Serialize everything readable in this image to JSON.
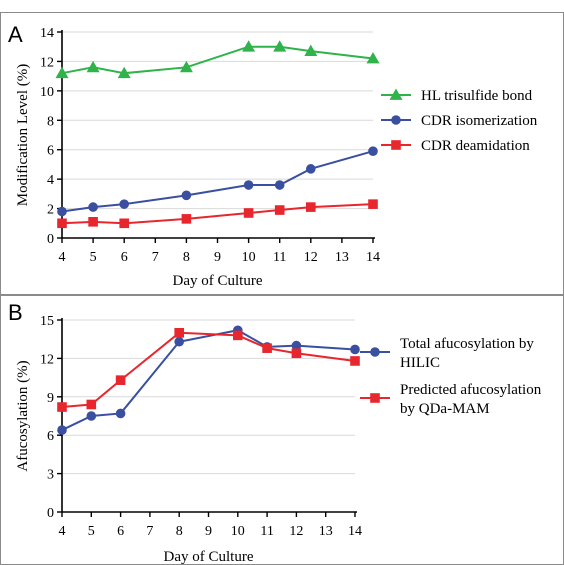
{
  "chart_data": [
    {
      "type": "line",
      "panel_label": "A",
      "title": "",
      "xlabel": "Day of Culture",
      "ylabel": "Modification Level (%)",
      "xlim": [
        4,
        14
      ],
      "ylim": [
        0,
        14
      ],
      "xticks": [
        4,
        5,
        6,
        7,
        8,
        9,
        10,
        11,
        12,
        13,
        14
      ],
      "yticks": [
        0,
        2,
        4,
        6,
        8,
        10,
        12,
        14
      ],
      "grid": "horizontal",
      "legend_position": "right",
      "series": [
        {
          "name": "HL trisulfide bond",
          "color": "#2fb34a",
          "marker": "triangle",
          "x": [
            4,
            5,
            6,
            8,
            10,
            11,
            12,
            14
          ],
          "y": [
            11.2,
            11.6,
            11.2,
            11.6,
            13.0,
            13.0,
            12.7,
            12.2
          ]
        },
        {
          "name": "CDR isomerization",
          "color": "#3a4fa0",
          "marker": "circle",
          "x": [
            4,
            5,
            6,
            8,
            10,
            11,
            12,
            14
          ],
          "y": [
            1.8,
            2.1,
            2.3,
            2.9,
            3.6,
            3.6,
            4.7,
            5.9
          ]
        },
        {
          "name": "CDR deamidation",
          "color": "#e8262d",
          "marker": "square",
          "x": [
            4,
            5,
            6,
            8,
            10,
            11,
            12,
            14
          ],
          "y": [
            1.0,
            1.1,
            1.0,
            1.3,
            1.7,
            1.9,
            2.1,
            2.3
          ]
        }
      ]
    },
    {
      "type": "line",
      "panel_label": "B",
      "title": "",
      "xlabel": "Day of Culture",
      "ylabel": "Afucosylation (%)",
      "xlim": [
        4,
        14
      ],
      "ylim": [
        0,
        15
      ],
      "xticks": [
        4,
        5,
        6,
        7,
        8,
        9,
        10,
        11,
        12,
        13,
        14
      ],
      "yticks": [
        0,
        3,
        6,
        9,
        12,
        15
      ],
      "grid": "horizontal",
      "legend_position": "right",
      "series": [
        {
          "name": "Total afucosylation by HILIC",
          "legend_lines": [
            "Total afucosylation by",
            "HILIC"
          ],
          "color": "#3a4fa0",
          "marker": "circle",
          "x": [
            4,
            5,
            6,
            8,
            10,
            11,
            12,
            14
          ],
          "y": [
            6.4,
            7.5,
            7.7,
            13.3,
            14.2,
            12.9,
            13.0,
            12.7
          ]
        },
        {
          "name": "Predicted afucosylation by QDa-MAM",
          "legend_lines": [
            "Predicted afucosylation",
            "by QDa-MAM"
          ],
          "color": "#e8262d",
          "marker": "square",
          "x": [
            4,
            5,
            6,
            8,
            10,
            11,
            12,
            14
          ],
          "y": [
            8.2,
            8.4,
            10.3,
            14.0,
            13.8,
            12.8,
            12.4,
            11.8
          ]
        }
      ]
    }
  ]
}
